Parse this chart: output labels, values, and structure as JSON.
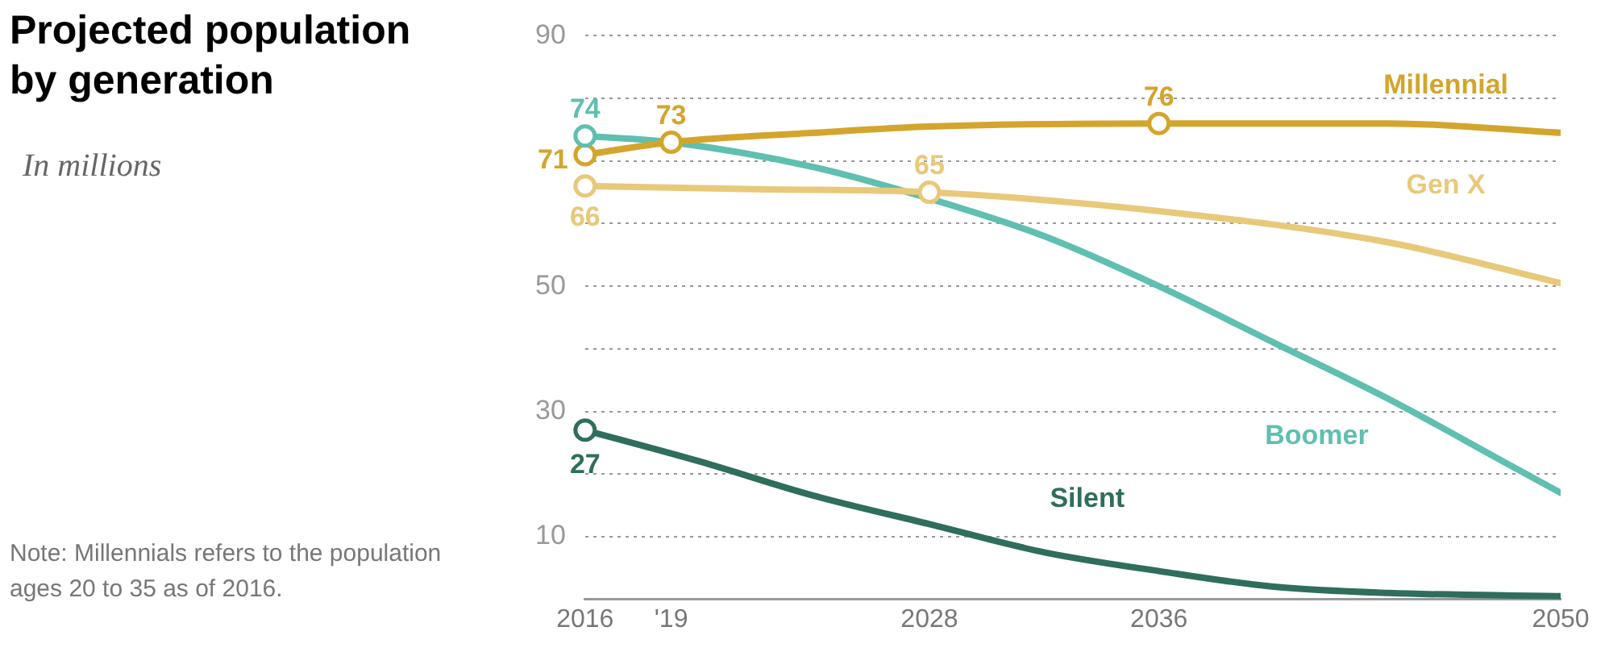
{
  "chart_data": {
    "type": "line",
    "title": "Projected population\nby generation",
    "subtitle": "In millions",
    "annotations": [
      "Note: Millennials refers to the population ages 20 to 35 as of 2016."
    ],
    "xlim": [
      2016,
      2050
    ],
    "xticks": [
      2016,
      {
        "value": 2019,
        "label": "'19"
      },
      2028,
      2036,
      2050
    ],
    "ylim": [
      0,
      90
    ],
    "yticks": [
      10,
      {
        "value": 20,
        "label": null
      },
      30,
      {
        "value": 40,
        "label": null
      },
      50,
      {
        "value": 60,
        "label": null
      },
      {
        "value": 70,
        "label": null
      },
      {
        "value": 80,
        "label": null
      },
      90
    ],
    "grid": "y",
    "legend": false,
    "line_style": "solid",
    "series": [
      {
        "name": "Millennial",
        "color": "#d4a52c",
        "x": [
          2016,
          2019,
          2024,
          2028,
          2036,
          2044,
          2050
        ],
        "values": [
          71,
          73,
          74.5,
          75.5,
          76,
          76,
          74.5
        ],
        "value_labels": [
          "71",
          "73",
          null,
          null,
          "76",
          null,
          null
        ]
      },
      {
        "name": "Gen X",
        "color": "#e8c97a",
        "x": [
          2016,
          2022,
          2028,
          2036,
          2044,
          2050
        ],
        "values": [
          66,
          65.5,
          65,
          62,
          57,
          50.5
        ],
        "value_labels": [
          "66",
          null,
          "65",
          null,
          null,
          null
        ]
      },
      {
        "name": "Boomer",
        "color": "#5fbfb0",
        "x": [
          2016,
          2019,
          2024,
          2028,
          2032,
          2036,
          2040,
          2044,
          2048,
          2050
        ],
        "values": [
          74,
          73,
          69,
          64,
          58,
          50,
          41,
          32,
          22,
          17
        ],
        "value_labels": [
          "74",
          null,
          null,
          null,
          null,
          null,
          null,
          null,
          null,
          null
        ]
      },
      {
        "name": "Silent",
        "color": "#2f6e5c",
        "x": [
          2016,
          2020,
          2024,
          2028,
          2032,
          2036,
          2040,
          2044,
          2050
        ],
        "values": [
          27,
          22,
          16.5,
          12,
          7.5,
          4.5,
          2,
          1,
          0.5
        ],
        "value_labels": [
          "27",
          null,
          null,
          null,
          null,
          null,
          null,
          null,
          null
        ]
      }
    ]
  }
}
